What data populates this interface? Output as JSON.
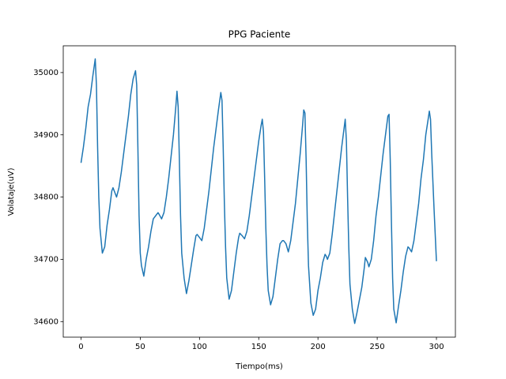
{
  "chart_data": {
    "type": "line",
    "title": "PPG Paciente",
    "xlabel": "Tiempo(ms)",
    "ylabel": "Volataje(uV)",
    "color": "#1f77b4",
    "x": [
      0,
      2,
      4,
      6,
      8,
      10,
      12,
      13,
      14,
      15,
      16,
      18,
      20,
      22,
      24,
      26,
      27,
      29,
      30,
      32,
      34,
      36,
      38,
      40,
      42,
      44,
      46,
      47,
      48,
      49,
      50,
      51,
      53,
      55,
      57,
      59,
      61,
      63,
      65,
      66,
      68,
      70,
      72,
      74,
      76,
      78,
      80,
      81,
      82,
      83,
      84,
      85,
      87,
      89,
      91,
      93,
      95,
      97,
      98,
      100,
      102,
      104,
      106,
      108,
      110,
      112,
      114,
      116,
      118,
      119,
      120,
      121,
      122,
      123,
      125,
      127,
      129,
      131,
      133,
      134,
      136,
      138,
      140,
      142,
      144,
      146,
      148,
      150,
      152,
      153,
      154,
      155,
      156,
      157,
      158,
      160,
      162,
      164,
      166,
      168,
      170,
      171,
      173,
      175,
      177,
      179,
      181,
      183,
      185,
      187,
      188,
      189,
      190,
      191,
      192,
      194,
      196,
      198,
      200,
      202,
      204,
      206,
      207,
      208,
      210,
      212,
      214,
      216,
      218,
      220,
      222,
      223,
      224,
      225,
      226,
      227,
      229,
      231,
      233,
      235,
      237,
      239,
      240,
      242,
      243,
      245,
      247,
      249,
      251,
      253,
      255,
      257,
      259,
      260,
      261,
      262,
      263,
      264,
      266,
      268,
      270,
      272,
      274,
      276,
      277,
      279,
      281,
      283,
      285,
      287,
      289,
      291,
      293,
      294,
      295,
      296,
      298,
      300
    ],
    "values": [
      34855,
      34880,
      34910,
      34945,
      34965,
      34995,
      35022,
      34980,
      34880,
      34800,
      34750,
      34710,
      34720,
      34755,
      34780,
      34810,
      34815,
      34805,
      34800,
      34815,
      34840,
      34870,
      34900,
      34930,
      34965,
      34990,
      35003,
      34980,
      34880,
      34770,
      34710,
      34690,
      34673,
      34700,
      34720,
      34745,
      34765,
      34770,
      34775,
      34772,
      34765,
      34775,
      34800,
      34830,
      34865,
      34900,
      34945,
      34970,
      34945,
      34860,
      34770,
      34710,
      34670,
      34645,
      34665,
      34690,
      34715,
      34738,
      34740,
      34735,
      34730,
      34750,
      34780,
      34810,
      34845,
      34880,
      34910,
      34940,
      34968,
      34955,
      34880,
      34790,
      34720,
      34670,
      34636,
      34650,
      34680,
      34710,
      34735,
      34742,
      34738,
      34733,
      34745,
      34770,
      34800,
      34830,
      34860,
      34890,
      34915,
      34925,
      34905,
      34830,
      34750,
      34690,
      34650,
      34627,
      34640,
      34670,
      34700,
      34725,
      34730,
      34730,
      34725,
      34712,
      34730,
      34760,
      34790,
      34830,
      34870,
      34915,
      34940,
      34935,
      34860,
      34760,
      34690,
      34630,
      34610,
      34620,
      34650,
      34670,
      34695,
      34708,
      34705,
      34700,
      34710,
      34740,
      34775,
      34810,
      34845,
      34880,
      34910,
      34925,
      34890,
      34800,
      34720,
      34660,
      34620,
      34597,
      34615,
      34635,
      34655,
      34685,
      34703,
      34695,
      34688,
      34700,
      34730,
      34770,
      34800,
      34835,
      34870,
      34900,
      34930,
      34933,
      34860,
      34760,
      34670,
      34620,
      34598,
      34625,
      34650,
      34680,
      34705,
      34720,
      34718,
      34712,
      34730,
      34760,
      34790,
      34830,
      34860,
      34900,
      34925,
      34938,
      34925,
      34870,
      34780,
      34697
    ],
    "xlim": [
      -15,
      316
    ],
    "ylim": [
      34575,
      35043
    ],
    "xticks": [
      0,
      50,
      100,
      150,
      200,
      250,
      300
    ],
    "yticks": [
      34600,
      34700,
      34800,
      34900,
      35000
    ]
  }
}
